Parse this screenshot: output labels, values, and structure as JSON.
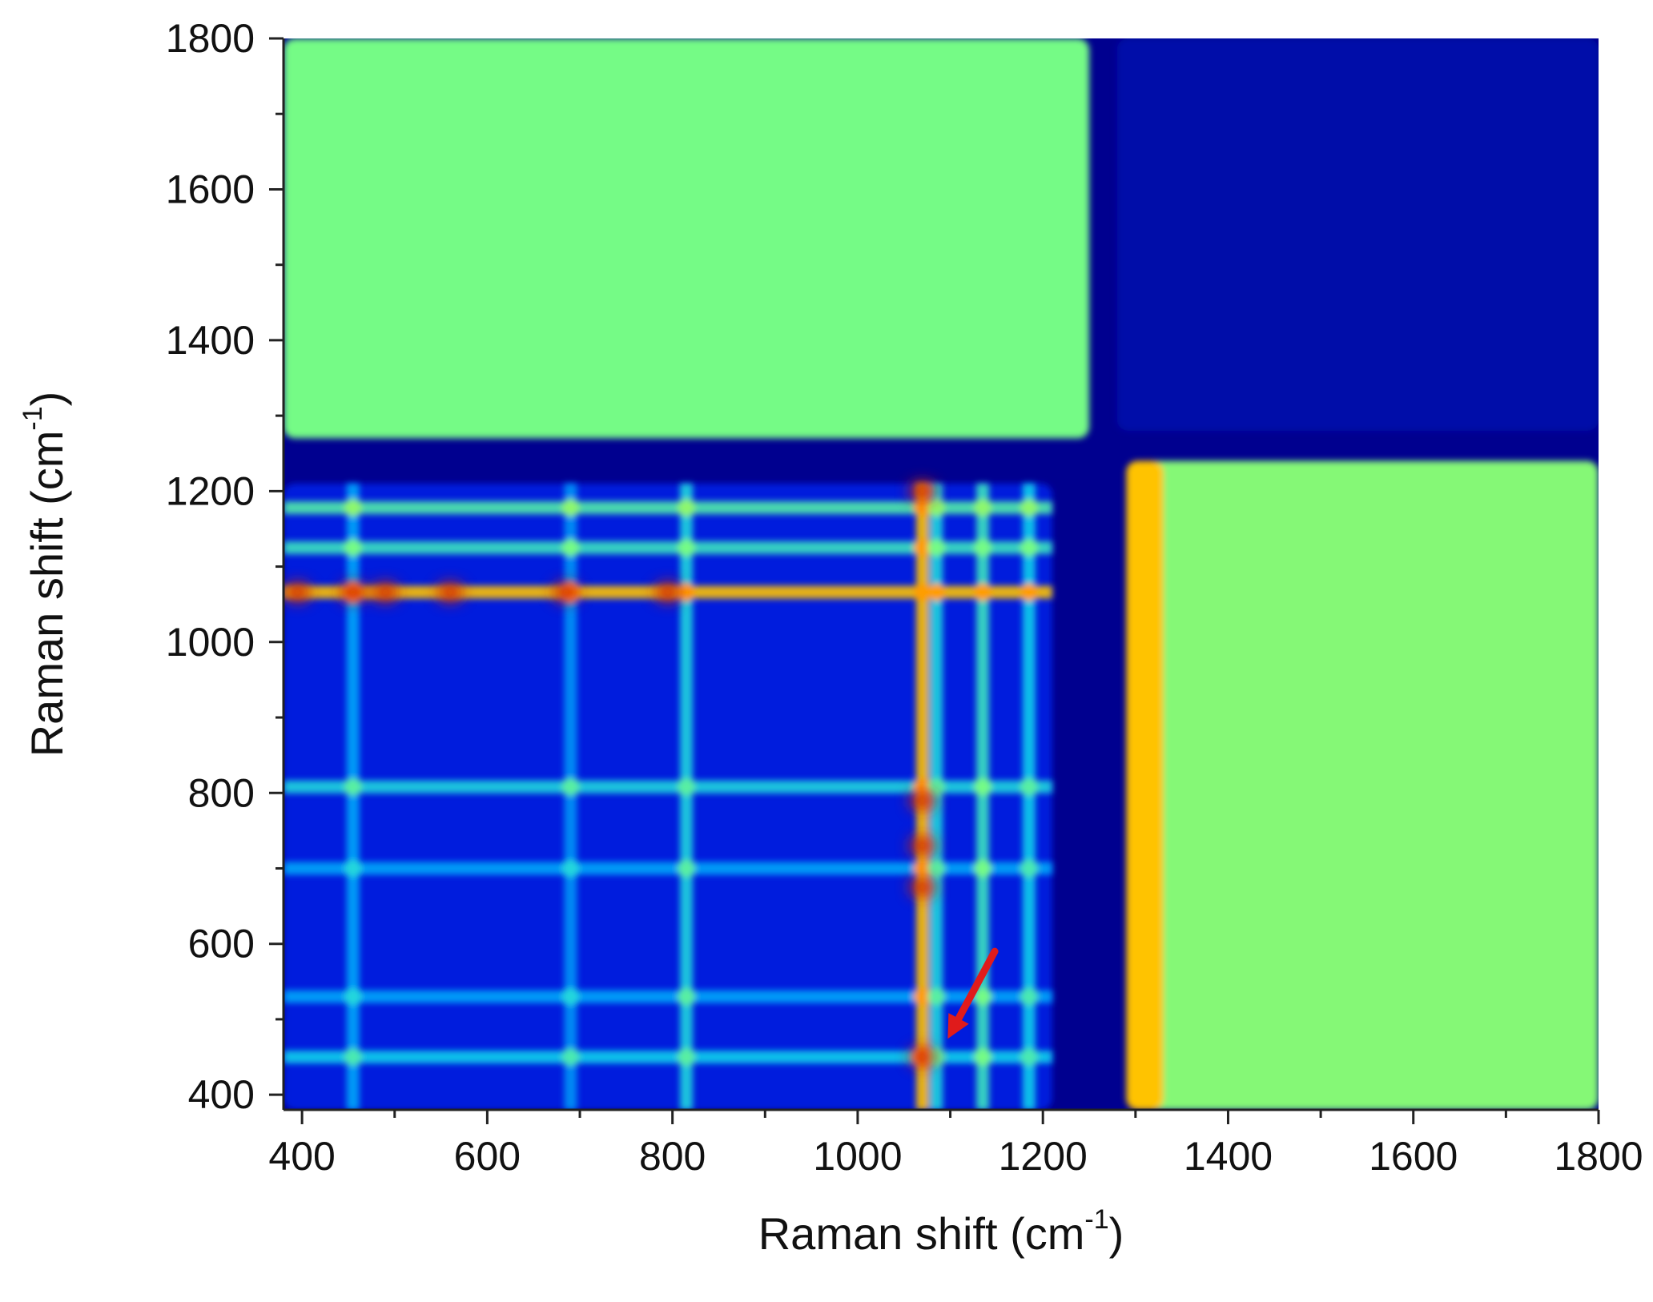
{
  "chart_data": {
    "type": "heatmap",
    "title": "",
    "xlabel": "Raman shift (cm-1)",
    "ylabel": "Raman shift (cm-1)",
    "xlabel_parts": {
      "base": "Raman shift (cm",
      "sup": "-1",
      "close": ")"
    },
    "ylabel_parts": {
      "base": "Raman shift (cm",
      "sup": "-1",
      "close": ")"
    },
    "xlim": [
      380,
      1800
    ],
    "ylim": [
      380,
      1800
    ],
    "x_ticks": [
      400,
      600,
      800,
      1000,
      1200,
      1400,
      1600,
      1800
    ],
    "y_ticks": [
      400,
      600,
      800,
      1000,
      1200,
      1400,
      1600,
      1800
    ],
    "x_tick_labels": [
      "400",
      "600",
      "800",
      "1000",
      "1200",
      "1400",
      "1600",
      "1800"
    ],
    "y_tick_labels": [
      "400",
      "600",
      "800",
      "1000",
      "1200",
      "1400",
      "1600",
      "1800"
    ],
    "colorscale": [
      "#00008f",
      "#0022e6",
      "#00c8ff",
      "#74fb86",
      "#ffe600",
      "#ff7a00",
      "#c00000"
    ],
    "grid": false,
    "legend": "none",
    "regions": [
      {
        "x": [
          380,
          1250
        ],
        "y": [
          1270,
          1800
        ],
        "level": 0.5
      },
      {
        "x": [
          1300,
          1800
        ],
        "y": [
          380,
          1240
        ],
        "level": 0.52
      },
      {
        "x": [
          1290,
          1330
        ],
        "y": [
          380,
          1240
        ],
        "level": 0.72
      },
      {
        "x": [
          1280,
          1800
        ],
        "y": [
          1280,
          1800
        ],
        "level": 0.05
      },
      {
        "x": [
          380,
          1210
        ],
        "y": [
          380,
          1210
        ],
        "level": 0.15
      }
    ],
    "bands_horizontal": [
      {
        "y": 1066,
        "level": 0.72
      },
      {
        "y": 1125,
        "level": 0.42
      },
      {
        "y": 1178,
        "level": 0.45
      },
      {
        "y": 808,
        "level": 0.38
      },
      {
        "y": 700,
        "level": 0.3
      },
      {
        "y": 450,
        "level": 0.36
      },
      {
        "y": 530,
        "level": 0.3
      }
    ],
    "bands_vertical": [
      {
        "x": 1070,
        "level": 0.72
      },
      {
        "x": 1085,
        "level": 0.38
      },
      {
        "x": 1135,
        "level": 0.42
      },
      {
        "x": 1185,
        "level": 0.36
      },
      {
        "x": 815,
        "level": 0.38
      },
      {
        "x": 455,
        "level": 0.3
      },
      {
        "x": 690,
        "level": 0.28
      }
    ],
    "hot_spots": [
      {
        "x": 455,
        "y": 1066
      },
      {
        "x": 395,
        "y": 1066
      },
      {
        "x": 490,
        "y": 1066
      },
      {
        "x": 560,
        "y": 1066
      },
      {
        "x": 685,
        "y": 1066
      },
      {
        "x": 795,
        "y": 1066
      },
      {
        "x": 1070,
        "y": 450
      },
      {
        "x": 1070,
        "y": 790
      },
      {
        "x": 1070,
        "y": 730
      },
      {
        "x": 1070,
        "y": 675
      },
      {
        "x": 1070,
        "y": 1200
      }
    ],
    "arrow": {
      "from": [
        1148,
        590
      ],
      "to": [
        1102,
        485
      ],
      "color": "#e01b1b"
    }
  }
}
